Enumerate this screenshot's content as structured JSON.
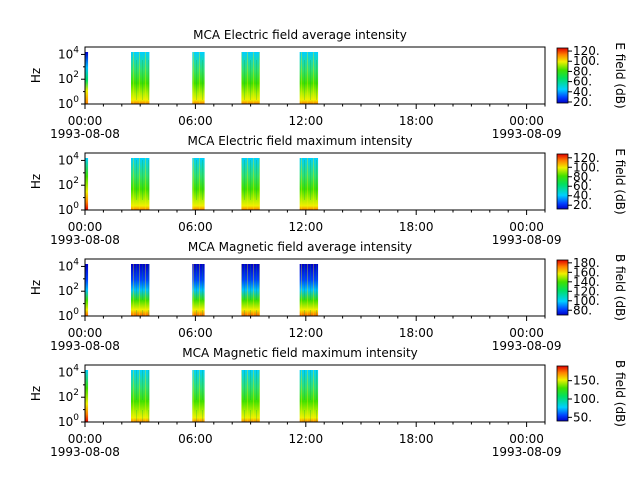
{
  "chart_data": [
    {
      "type": "heatmap",
      "title": "MCA  Electric field average intensity",
      "ylabel": "Hz",
      "y_scale": "log",
      "y_ticks": [
        "0",
        "2",
        "4"
      ],
      "x_ticks": [
        "00:00",
        "06:00",
        "12:00",
        "18:00",
        "00:00"
      ],
      "x_dates": [
        "1993-08-08",
        "1993-08-09"
      ],
      "xlim": [
        "1993-08-08 00:00",
        "1993-08-09 01:00"
      ],
      "colorbar_label": "E field (dB)",
      "colorbar_ticks": [
        "20.",
        "40.",
        "60.",
        "80.",
        "100.",
        "120."
      ],
      "colorbar_range": [
        18,
        126
      ],
      "data_segments": [
        {
          "start": "1993-08-08 00:00",
          "end": "1993-08-08 00:10",
          "level": "mixed"
        },
        {
          "start": "1993-08-08 02:30",
          "end": "1993-08-08 03:30",
          "level": "mid"
        },
        {
          "start": "1993-08-08 05:50",
          "end": "1993-08-08 06:30",
          "level": "mid"
        },
        {
          "start": "1993-08-08 08:30",
          "end": "1993-08-08 09:30",
          "level": "mid"
        },
        {
          "start": "1993-08-08 11:40",
          "end": "1993-08-08 12:40",
          "level": "mid"
        }
      ]
    },
    {
      "type": "heatmap",
      "title": "MCA  Electric field maximum intensity",
      "ylabel": "Hz",
      "y_scale": "log",
      "y_ticks": [
        "0",
        "2",
        "4"
      ],
      "x_ticks": [
        "00:00",
        "06:00",
        "12:00",
        "18:00",
        "00:00"
      ],
      "x_dates": [
        "1993-08-08",
        "1993-08-09"
      ],
      "xlim": [
        "1993-08-08 00:00",
        "1993-08-09 01:00"
      ],
      "colorbar_label": "E field (dB)",
      "colorbar_ticks": [
        "20.",
        "40.",
        "60.",
        "80.",
        "100.",
        "120."
      ],
      "colorbar_range": [
        12,
        128
      ],
      "data_segments": [
        {
          "start": "1993-08-08 00:00",
          "end": "1993-08-08 00:10",
          "level": "high"
        },
        {
          "start": "1993-08-08 02:30",
          "end": "1993-08-08 03:30",
          "level": "mid"
        },
        {
          "start": "1993-08-08 05:50",
          "end": "1993-08-08 06:30",
          "level": "mid"
        },
        {
          "start": "1993-08-08 08:30",
          "end": "1993-08-08 09:30",
          "level": "mid"
        },
        {
          "start": "1993-08-08 11:40",
          "end": "1993-08-08 12:40",
          "level": "mid"
        }
      ]
    },
    {
      "type": "heatmap",
      "title": "MCA  Magnetic field average intensity",
      "ylabel": "Hz",
      "y_scale": "log",
      "y_ticks": [
        "0",
        "2",
        "4"
      ],
      "x_ticks": [
        "00:00",
        "06:00",
        "12:00",
        "18:00",
        "00:00"
      ],
      "x_dates": [
        "1993-08-08",
        "1993-08-09"
      ],
      "xlim": [
        "1993-08-08 00:00",
        "1993-08-09 01:00"
      ],
      "colorbar_label": "B field (dB)",
      "colorbar_ticks": [
        "80.",
        "100.",
        "120.",
        "140.",
        "160.",
        "180."
      ],
      "colorbar_range": [
        70,
        186
      ],
      "data_segments": [
        {
          "start": "1993-08-08 00:00",
          "end": "1993-08-08 00:10",
          "level": "low-top"
        },
        {
          "start": "1993-08-08 02:30",
          "end": "1993-08-08 03:30",
          "level": "low-top"
        },
        {
          "start": "1993-08-08 05:50",
          "end": "1993-08-08 06:30",
          "level": "low-top"
        },
        {
          "start": "1993-08-08 08:30",
          "end": "1993-08-08 09:30",
          "level": "low-top"
        },
        {
          "start": "1993-08-08 11:40",
          "end": "1993-08-08 12:40",
          "level": "low-top"
        }
      ]
    },
    {
      "type": "heatmap",
      "title": "MCA  Magnetic field maximum intensity",
      "ylabel": "Hz",
      "y_scale": "log",
      "y_ticks": [
        "0",
        "2",
        "4"
      ],
      "x_ticks": [
        "00:00",
        "06:00",
        "12:00",
        "18:00",
        "00:00"
      ],
      "x_dates": [
        "1993-08-08",
        "1993-08-09"
      ],
      "xlim": [
        "1993-08-08 00:00",
        "1993-08-09 01:00"
      ],
      "colorbar_label": "B field (dB)",
      "colorbar_ticks": [
        "50.",
        "100.",
        "150."
      ],
      "colorbar_range": [
        40,
        190
      ],
      "data_segments": [
        {
          "start": "1993-08-08 00:00",
          "end": "1993-08-08 00:10",
          "level": "high"
        },
        {
          "start": "1993-08-08 02:30",
          "end": "1993-08-08 03:30",
          "level": "mid"
        },
        {
          "start": "1993-08-08 05:50",
          "end": "1993-08-08 06:30",
          "level": "mid"
        },
        {
          "start": "1993-08-08 08:30",
          "end": "1993-08-08 09:30",
          "level": "mid"
        },
        {
          "start": "1993-08-08 11:40",
          "end": "1993-08-08 12:40",
          "level": "mid"
        }
      ]
    }
  ]
}
